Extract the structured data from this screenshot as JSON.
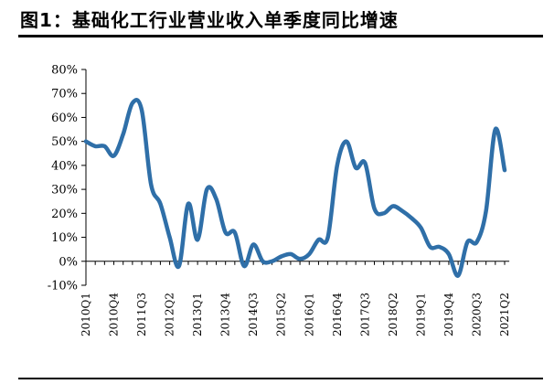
{
  "header": {
    "title": "图1：基础化工行业营业收入单季度同比增速"
  },
  "chart_data": {
    "type": "line",
    "title": "图1：基础化工行业营业收入单季度同比增速",
    "xlabel": "",
    "ylabel": "",
    "ylim": [
      -10,
      80
    ],
    "yticks": [
      -10,
      0,
      10,
      20,
      30,
      40,
      50,
      60,
      70,
      80
    ],
    "yticklabels": [
      "-10%",
      "0%",
      "10%",
      "20%",
      "30%",
      "40%",
      "50%",
      "60%",
      "70%",
      "80%"
    ],
    "grid": false,
    "legend": "none",
    "line_color": "#2F6FA8",
    "x": [
      "2010Q1",
      "2010Q2",
      "2010Q3",
      "2010Q4",
      "2011Q1",
      "2011Q2",
      "2011Q3",
      "2011Q4",
      "2012Q1",
      "2012Q2",
      "2012Q3",
      "2012Q4",
      "2013Q1",
      "2013Q2",
      "2013Q3",
      "2013Q4",
      "2014Q1",
      "2014Q2",
      "2014Q3",
      "2014Q4",
      "2015Q1",
      "2015Q2",
      "2015Q3",
      "2015Q4",
      "2016Q1",
      "2016Q2",
      "2016Q3",
      "2016Q4",
      "2017Q1",
      "2017Q2",
      "2017Q3",
      "2017Q4",
      "2018Q1",
      "2018Q2",
      "2018Q3",
      "2018Q4",
      "2019Q1",
      "2019Q2",
      "2019Q3",
      "2019Q4",
      "2020Q1",
      "2020Q2",
      "2020Q3",
      "2020Q4",
      "2021Q1",
      "2021Q2"
    ],
    "xtick_labels": [
      "2010Q1",
      "2010Q4",
      "2011Q3",
      "2012Q2",
      "2013Q1",
      "2013Q4",
      "2014Q3",
      "2015Q2",
      "2016Q1",
      "2016Q4",
      "2017Q3",
      "2018Q2",
      "2019Q1",
      "2019Q4",
      "2020Q3",
      "2021Q2"
    ],
    "series": [
      {
        "name": "",
        "values": [
          50,
          48,
          48,
          44,
          53,
          66,
          63,
          32,
          24,
          10,
          -2,
          24,
          9,
          30,
          26,
          12,
          12,
          -2,
          7,
          0,
          0,
          2,
          3,
          1,
          3,
          9,
          10,
          40,
          50,
          39,
          41,
          22,
          20,
          23,
          21,
          18,
          14,
          6,
          6,
          3,
          -6,
          8,
          8,
          21,
          55,
          38
        ]
      }
    ]
  }
}
